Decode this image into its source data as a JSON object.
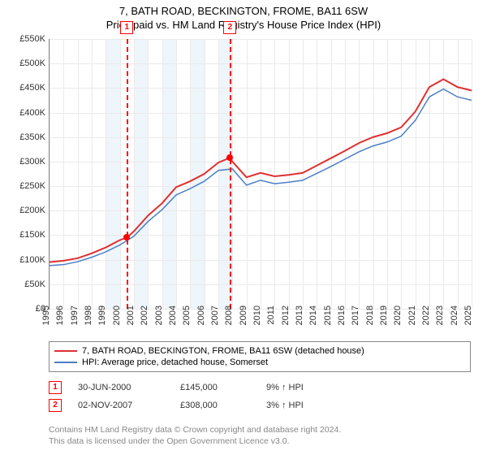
{
  "title_line1": "7, BATH ROAD, BECKINGTON, FROME, BA11 6SW",
  "title_line2": "Price paid vs. HM Land Registry's House Price Index (HPI)",
  "chart": {
    "type": "line",
    "background_color": "#ffffff",
    "grid_color": "#eaeaea",
    "band_color": "#eef5fb",
    "x_years": [
      1995,
      1996,
      1997,
      1998,
      1999,
      2000,
      2001,
      2002,
      2003,
      2004,
      2005,
      2006,
      2007,
      2008,
      2009,
      2010,
      2011,
      2012,
      2013,
      2014,
      2015,
      2016,
      2017,
      2018,
      2019,
      2020,
      2021,
      2022,
      2023,
      2024,
      2025
    ],
    "xlim": [
      1995,
      2025
    ],
    "ylim": [
      0,
      550000
    ],
    "ytick_step": 50000,
    "y_labels": [
      "£0",
      "£50K",
      "£100K",
      "£150K",
      "£200K",
      "£250K",
      "£300K",
      "£350K",
      "£400K",
      "£450K",
      "£500K",
      "£550K"
    ],
    "band_years": [
      1999,
      2000,
      2001,
      2002,
      2003,
      2004,
      2005,
      2006,
      2007,
      2008
    ],
    "vlines": [
      {
        "x": 2000.5,
        "color": "#ff0000",
        "label": "1"
      },
      {
        "x": 2007.83,
        "color": "#ff0000",
        "label": "2"
      }
    ],
    "points": [
      {
        "x": 2000.5,
        "y": 145000,
        "color": "#ff0000"
      },
      {
        "x": 2007.83,
        "y": 308000,
        "color": "#ff0000"
      }
    ],
    "series": [
      {
        "name": "7, BATH ROAD, BECKINGTON, FROME, BA11 6SW (detached house)",
        "color": "#e03030",
        "line_width": 2,
        "x": [
          1995,
          1996,
          1997,
          1998,
          1999,
          2000,
          2000.5,
          2001,
          2002,
          2003,
          2004,
          2005,
          2006,
          2007,
          2007.83,
          2008,
          2009,
          2010,
          2011,
          2012,
          2013,
          2014,
          2015,
          2016,
          2017,
          2018,
          2019,
          2020,
          2021,
          2022,
          2023,
          2024,
          2025
        ],
        "y": [
          95000,
          98000,
          103000,
          113000,
          125000,
          140000,
          145000,
          158000,
          190000,
          215000,
          248000,
          260000,
          275000,
          298000,
          308000,
          300000,
          268000,
          277000,
          270000,
          273000,
          277000,
          292000,
          307000,
          322000,
          338000,
          350000,
          358000,
          370000,
          402000,
          452000,
          468000,
          452000,
          445000
        ]
      },
      {
        "name": "HPI: Average price, detached house, Somerset",
        "color": "#4a7fc5",
        "line_width": 1.5,
        "x": [
          1995,
          1996,
          1997,
          1998,
          1999,
          2000,
          2001,
          2002,
          2003,
          2004,
          2005,
          2006,
          2007,
          2008,
          2009,
          2010,
          2011,
          2012,
          2013,
          2014,
          2015,
          2016,
          2017,
          2018,
          2019,
          2020,
          2021,
          2022,
          2023,
          2024,
          2025
        ],
        "y": [
          88000,
          90000,
          96000,
          105000,
          116000,
          130000,
          148000,
          178000,
          202000,
          232000,
          245000,
          260000,
          282000,
          285000,
          252000,
          262000,
          255000,
          258000,
          262000,
          276000,
          290000,
          305000,
          320000,
          332000,
          340000,
          352000,
          384000,
          432000,
          448000,
          432000,
          425000
        ]
      }
    ],
    "title_fontsize": 13,
    "label_fontsize": 11
  },
  "legend_items": [
    {
      "color": "#e03030",
      "label": "7, BATH ROAD, BECKINGTON, FROME, BA11 6SW (detached house)"
    },
    {
      "color": "#4a7fc5",
      "label": "HPI: Average price, detached house, Somerset"
    }
  ],
  "events": [
    {
      "num": "1",
      "date": "30-JUN-2000",
      "price": "£145,000",
      "pct": "9% ↑ HPI"
    },
    {
      "num": "2",
      "date": "02-NOV-2007",
      "price": "£308,000",
      "pct": "3% ↑ HPI"
    }
  ],
  "footer_line1": "Contains HM Land Registry data © Crown copyright and database right 2024.",
  "footer_line2": "This data is licensed under the Open Government Licence v3.0."
}
